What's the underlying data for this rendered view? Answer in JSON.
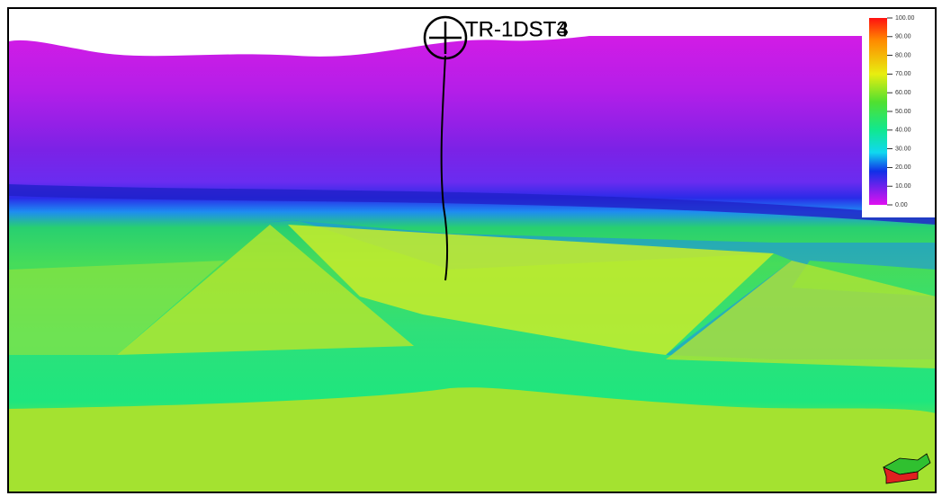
{
  "well": {
    "labels": [
      "TR-1DST3",
      "TR-1DST4"
    ]
  },
  "legend": {
    "ticks": [
      "100.00",
      "90.00",
      "80.00",
      "70.00",
      "60.00",
      "50.00",
      "40.00",
      "30.00",
      "20.00",
      "10.00",
      "0.00"
    ]
  }
}
